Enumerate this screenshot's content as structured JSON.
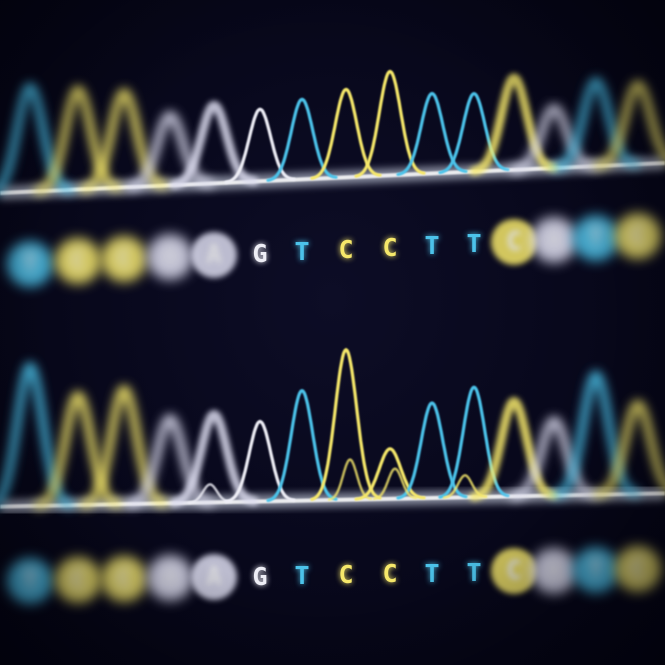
{
  "colors": {
    "background": "#07071a",
    "A": "#dcdcef",
    "C": "#f6e86a",
    "G": "#eeeef6",
    "T": "#4cc3ea",
    "baseline": "#e8f0ff"
  },
  "tracks": [
    {
      "id": "upper",
      "bases": [
        "T",
        "C",
        "C",
        "A",
        "A",
        "G",
        "T",
        "C",
        "C",
        "T",
        "T",
        "C",
        "A",
        "T",
        "C"
      ]
    },
    {
      "id": "lower",
      "bases": [
        "T",
        "C",
        "C",
        "A",
        "A",
        "G",
        "T",
        "C",
        "C",
        "T",
        "T",
        "C",
        "A",
        "T",
        "C"
      ]
    }
  ],
  "focus_range": [
    5,
    10
  ]
}
